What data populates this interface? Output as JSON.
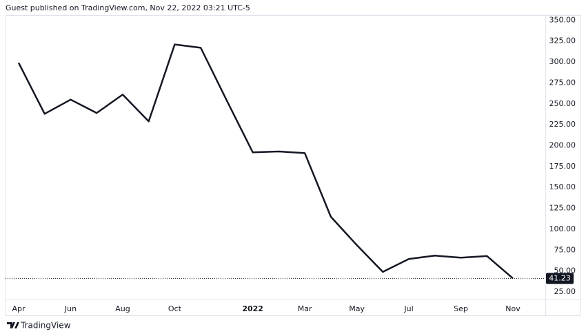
{
  "chart_data": {
    "type": "line",
    "title": "Guest published on TradingView.com, Nov 22, 2022 03:21 UTC-5",
    "source": "TradingView",
    "categories": [
      "Apr",
      null,
      "Jun",
      null,
      "Aug",
      null,
      "Oct",
      null,
      null,
      "2022",
      null,
      "Mar",
      null,
      "May",
      null,
      "Jul",
      null,
      "Sep",
      null,
      "Nov"
    ],
    "values": [
      299,
      238,
      255,
      239,
      261,
      229,
      321,
      317,
      254,
      192,
      193,
      191,
      115,
      81,
      49,
      64.5,
      68.5,
      66,
      68,
      41.23
    ],
    "color": "#131722",
    "ylim": [
      16,
      356
    ],
    "yticks": [
      {
        "value": 25,
        "label": "25.00"
      },
      {
        "value": 50,
        "label": "50.00"
      },
      {
        "value": 75,
        "label": "75.00"
      },
      {
        "value": 100,
        "label": "100.00"
      },
      {
        "value": 125,
        "label": "125.00"
      },
      {
        "value": 150,
        "label": "150.00"
      },
      {
        "value": 175,
        "label": "175.00"
      },
      {
        "value": 200,
        "label": "200.00"
      },
      {
        "value": 225,
        "label": "225.00"
      },
      {
        "value": 250,
        "label": "250.00"
      },
      {
        "value": 275,
        "label": "275.00"
      },
      {
        "value": 300,
        "label": "300.00"
      },
      {
        "value": 325,
        "label": "325.00"
      },
      {
        "value": 350,
        "label": "350.00"
      }
    ],
    "grid": false
  }
}
